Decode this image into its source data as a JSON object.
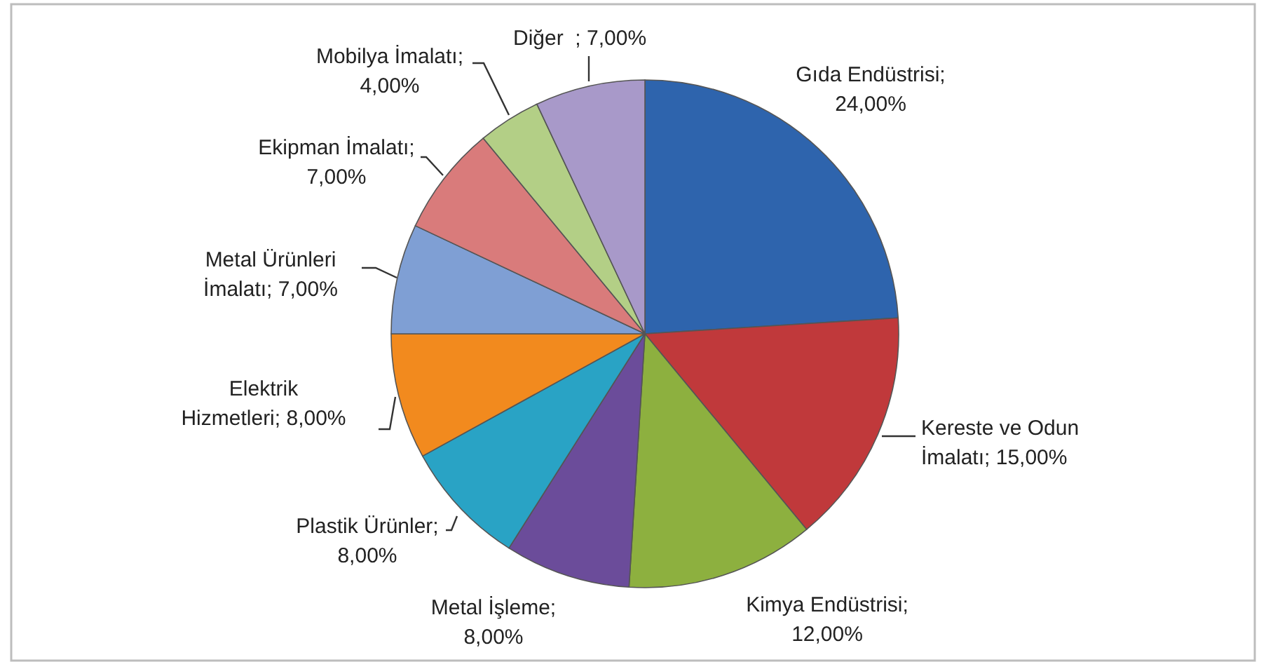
{
  "chart_data": {
    "type": "pie",
    "categories": [
      "Gıda Endüstrisi",
      "Kereste ve Odun İmalatı",
      "Kimya Endüstrisi",
      "Metal İşleme",
      "Plastik Ürünler",
      "Elektrik Hizmetleri",
      "Metal Ürünleri İmalatı",
      "Ekipman İmalatı",
      "Mobilya İmalatı",
      "Diğer "
    ],
    "values": [
      24,
      15,
      12,
      8,
      8,
      8,
      7,
      7,
      4,
      7
    ],
    "value_labels": [
      "; 24,00%",
      "; 15,00%",
      "; 12,00%",
      "; 8,00%",
      "; 8,00%",
      "; 8,00%",
      "; 7,00%",
      "; 7,00%",
      "; 4,00%",
      " ; 7,00%"
    ],
    "colors": [
      "#2e64ad",
      "#c0393b",
      "#8db03f",
      "#6b4c9a",
      "#29a3c5",
      "#f28a1e",
      "#7f9fd4",
      "#d97b7b",
      "#b3cf86",
      "#a899c9"
    ]
  }
}
